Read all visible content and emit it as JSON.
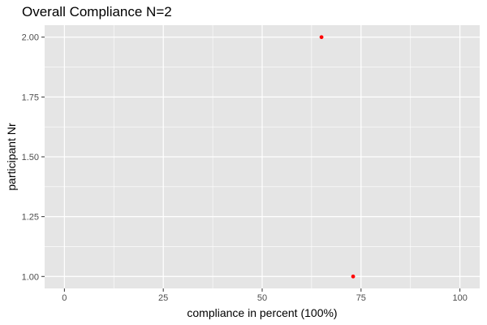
{
  "chart_data": {
    "type": "scatter",
    "title": "Overall Compliance N=2",
    "xlabel": "compliance in percent (100%)",
    "ylabel": "participant Nr",
    "xlim": [
      -5,
      105
    ],
    "ylim": [
      0.95,
      2.05
    ],
    "x_ticks": [
      0,
      25,
      50,
      75,
      100
    ],
    "x_tick_labels": [
      "0",
      "25",
      "50",
      "75",
      "100"
    ],
    "y_ticks": [
      1.0,
      1.25,
      1.5,
      1.75,
      2.0
    ],
    "y_tick_labels": [
      "1.00",
      "1.25",
      "1.50",
      "1.75",
      "2.00"
    ],
    "grid": true,
    "panel_color": "#e5e5e5",
    "grid_color": "#ffffff",
    "point_color": "#ff0000",
    "points": [
      {
        "x": 65,
        "y": 2.0
      },
      {
        "x": 73,
        "y": 1.0
      }
    ]
  }
}
